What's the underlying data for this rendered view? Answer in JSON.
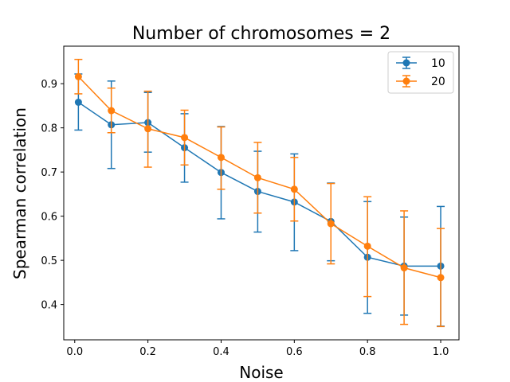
{
  "chart_data": {
    "type": "line",
    "title": "Number of chromosomes = 2",
    "xlabel": "Noise",
    "ylabel": "Spearman correlation",
    "xlim": [
      -0.03,
      1.05
    ],
    "ylim": [
      0.32,
      0.985
    ],
    "xticks": [
      0.0,
      0.2,
      0.4,
      0.6,
      0.8,
      1.0
    ],
    "xtick_labels": [
      "0.0",
      "0.2",
      "0.4",
      "0.6",
      "0.8",
      "1.0"
    ],
    "yticks": [
      0.4,
      0.5,
      0.6,
      0.7,
      0.8,
      0.9
    ],
    "ytick_labels": [
      "0.4",
      "0.5",
      "0.6",
      "0.7",
      "0.8",
      "0.9"
    ],
    "grid": false,
    "legend_position": "top-right",
    "series": [
      {
        "name": "10",
        "color": "#1f77b4",
        "x": [
          0.01,
          0.1,
          0.2,
          0.3,
          0.4,
          0.5,
          0.6,
          0.7,
          0.8,
          0.9,
          1.0
        ],
        "y": [
          0.858,
          0.807,
          0.812,
          0.755,
          0.699,
          0.656,
          0.632,
          0.588,
          0.507,
          0.487,
          0.487
        ],
        "err_low": [
          0.795,
          0.708,
          0.745,
          0.677,
          0.594,
          0.564,
          0.522,
          0.499,
          0.38,
          0.376,
          0.351
        ],
        "err_high": [
          0.922,
          0.906,
          0.88,
          0.832,
          0.803,
          0.747,
          0.741,
          0.675,
          0.633,
          0.598,
          0.622
        ]
      },
      {
        "name": "20",
        "color": "#ff7f0e",
        "x": [
          0.01,
          0.1,
          0.2,
          0.3,
          0.4,
          0.5,
          0.6,
          0.7,
          0.8,
          0.9,
          1.0
        ],
        "y": [
          0.916,
          0.839,
          0.798,
          0.778,
          0.733,
          0.687,
          0.661,
          0.583,
          0.532,
          0.483,
          0.461
        ],
        "err_low": [
          0.877,
          0.789,
          0.711,
          0.716,
          0.661,
          0.607,
          0.589,
          0.492,
          0.418,
          0.355,
          0.35
        ],
        "err_high": [
          0.955,
          0.89,
          0.883,
          0.84,
          0.802,
          0.767,
          0.733,
          0.674,
          0.644,
          0.612,
          0.572
        ]
      }
    ]
  }
}
